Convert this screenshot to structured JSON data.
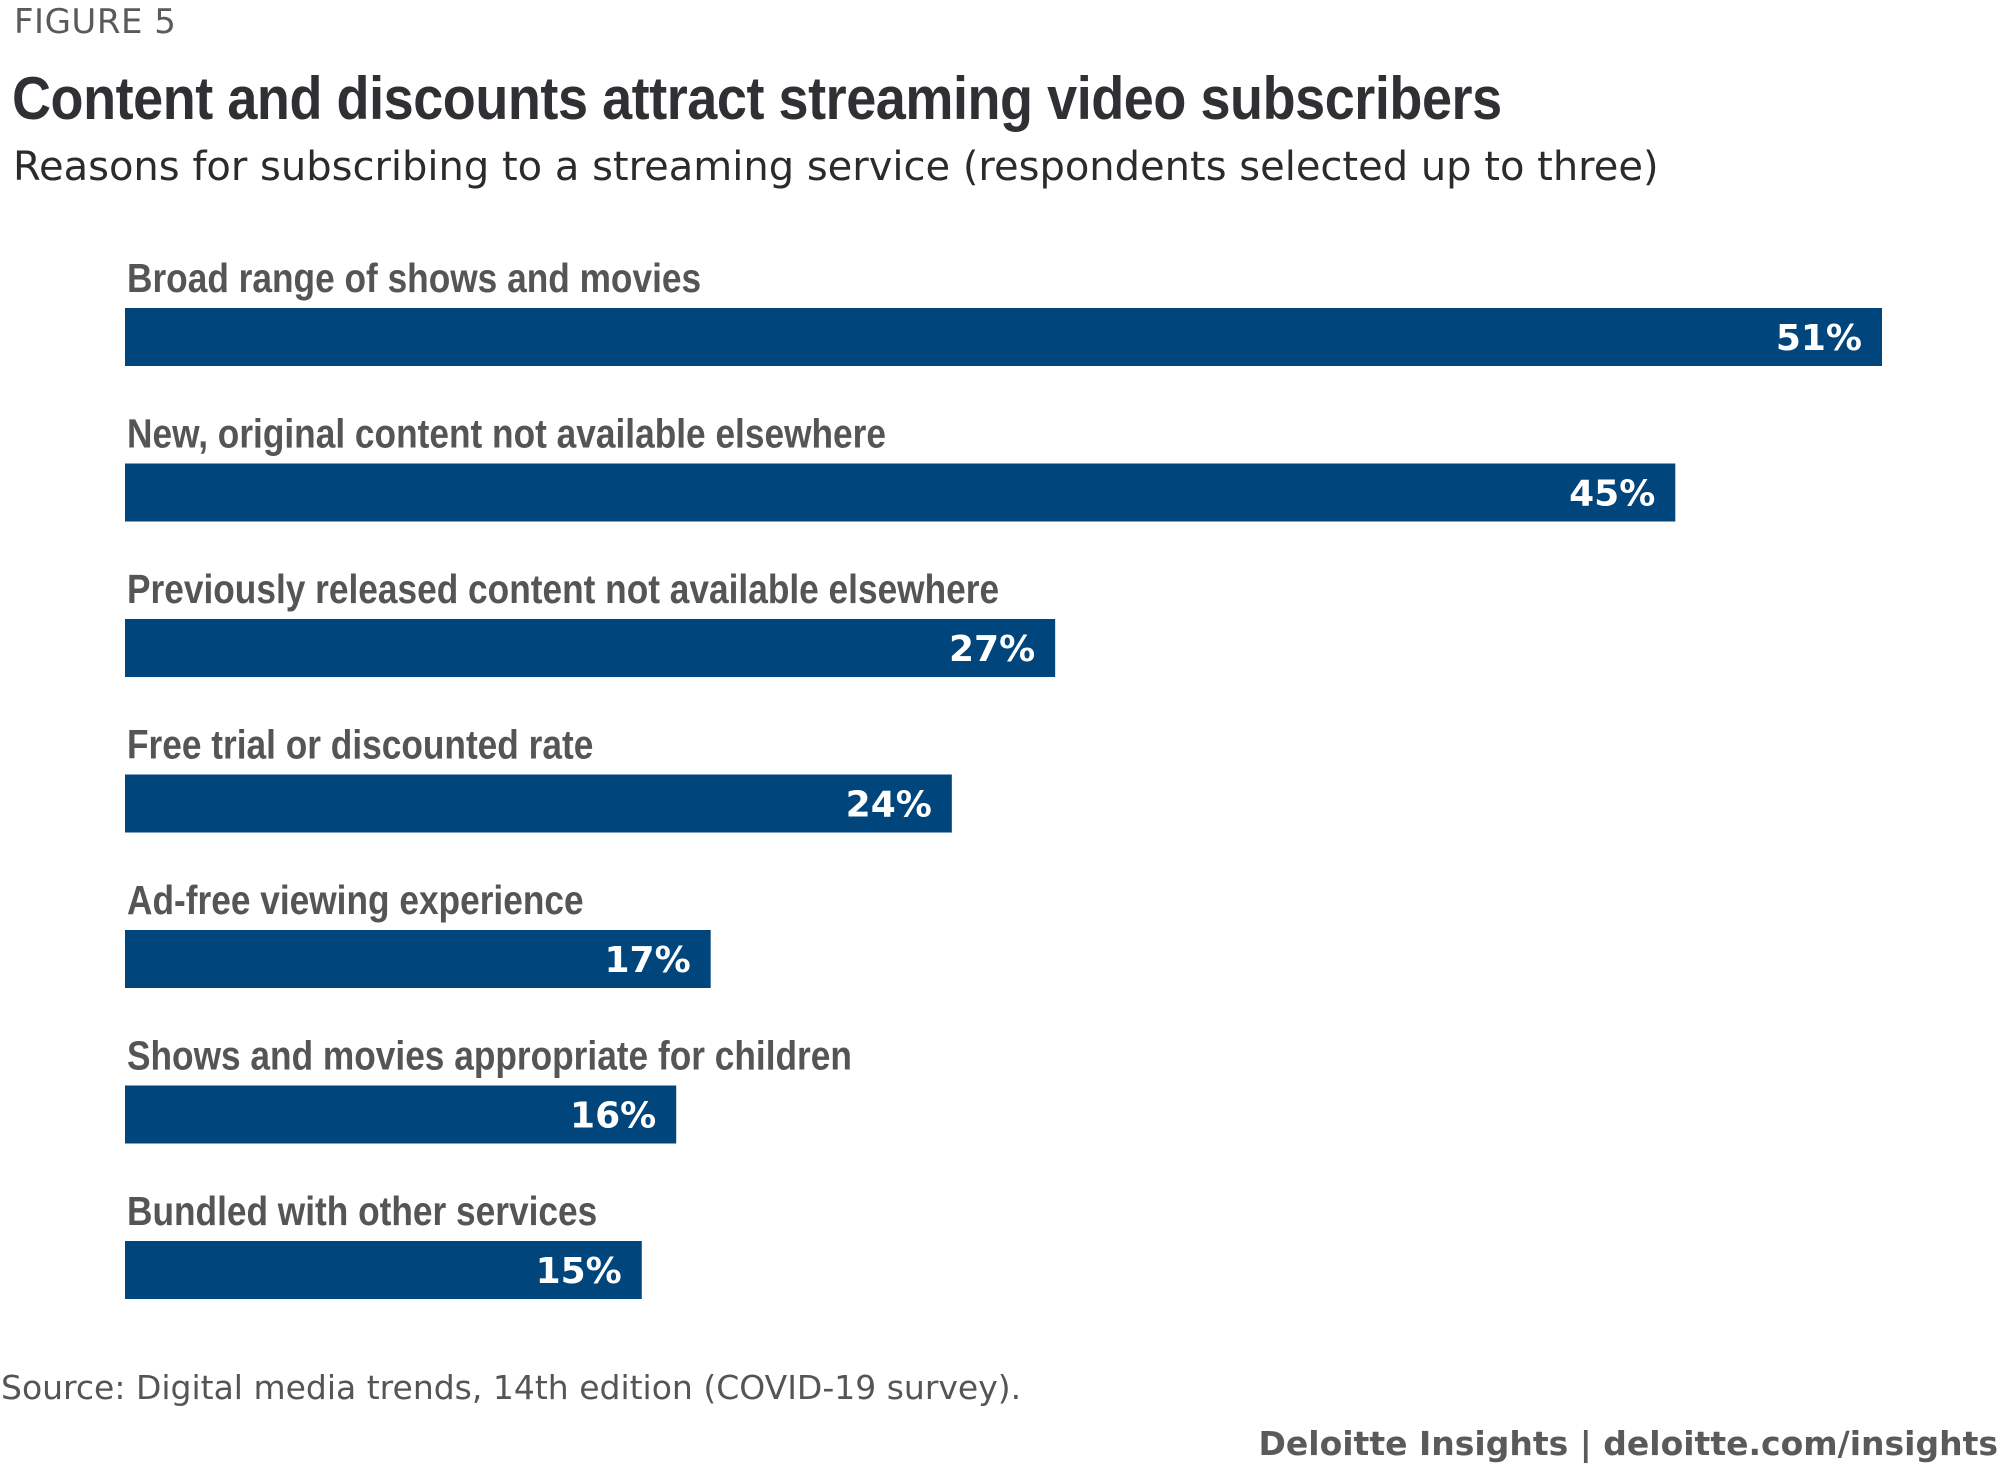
{
  "figure_label": "FIGURE 5",
  "source": "Source: Digital media trends, 14th edition (COVID-19 survey).",
  "credit": "Deloitte Insights | deloitte.com/insights",
  "colors": {
    "bar": "#00457c",
    "value_text": "#ffffff",
    "category_text": "#555555"
  },
  "chart_data": {
    "type": "bar",
    "orientation": "horizontal",
    "title": "Content and discounts attract streaming video subscribers",
    "subtitle": "Reasons for subscribing to a streaming service (respondents selected up to three)",
    "categories": [
      "Broad range of shows and movies",
      "New, original content not available elsewhere",
      "Previously released content not available elsewhere",
      "Free trial or discounted rate",
      "Ad-free viewing experience",
      "Shows and movies appropriate for children",
      "Bundled with other services"
    ],
    "values": [
      51,
      45,
      27,
      24,
      17,
      16,
      15
    ],
    "value_labels": [
      "51%",
      "45%",
      "27%",
      "24%",
      "17%",
      "16%",
      "15%"
    ],
    "unit": "%",
    "xlim": [
      0,
      51
    ],
    "grid": false,
    "legend": "none"
  }
}
